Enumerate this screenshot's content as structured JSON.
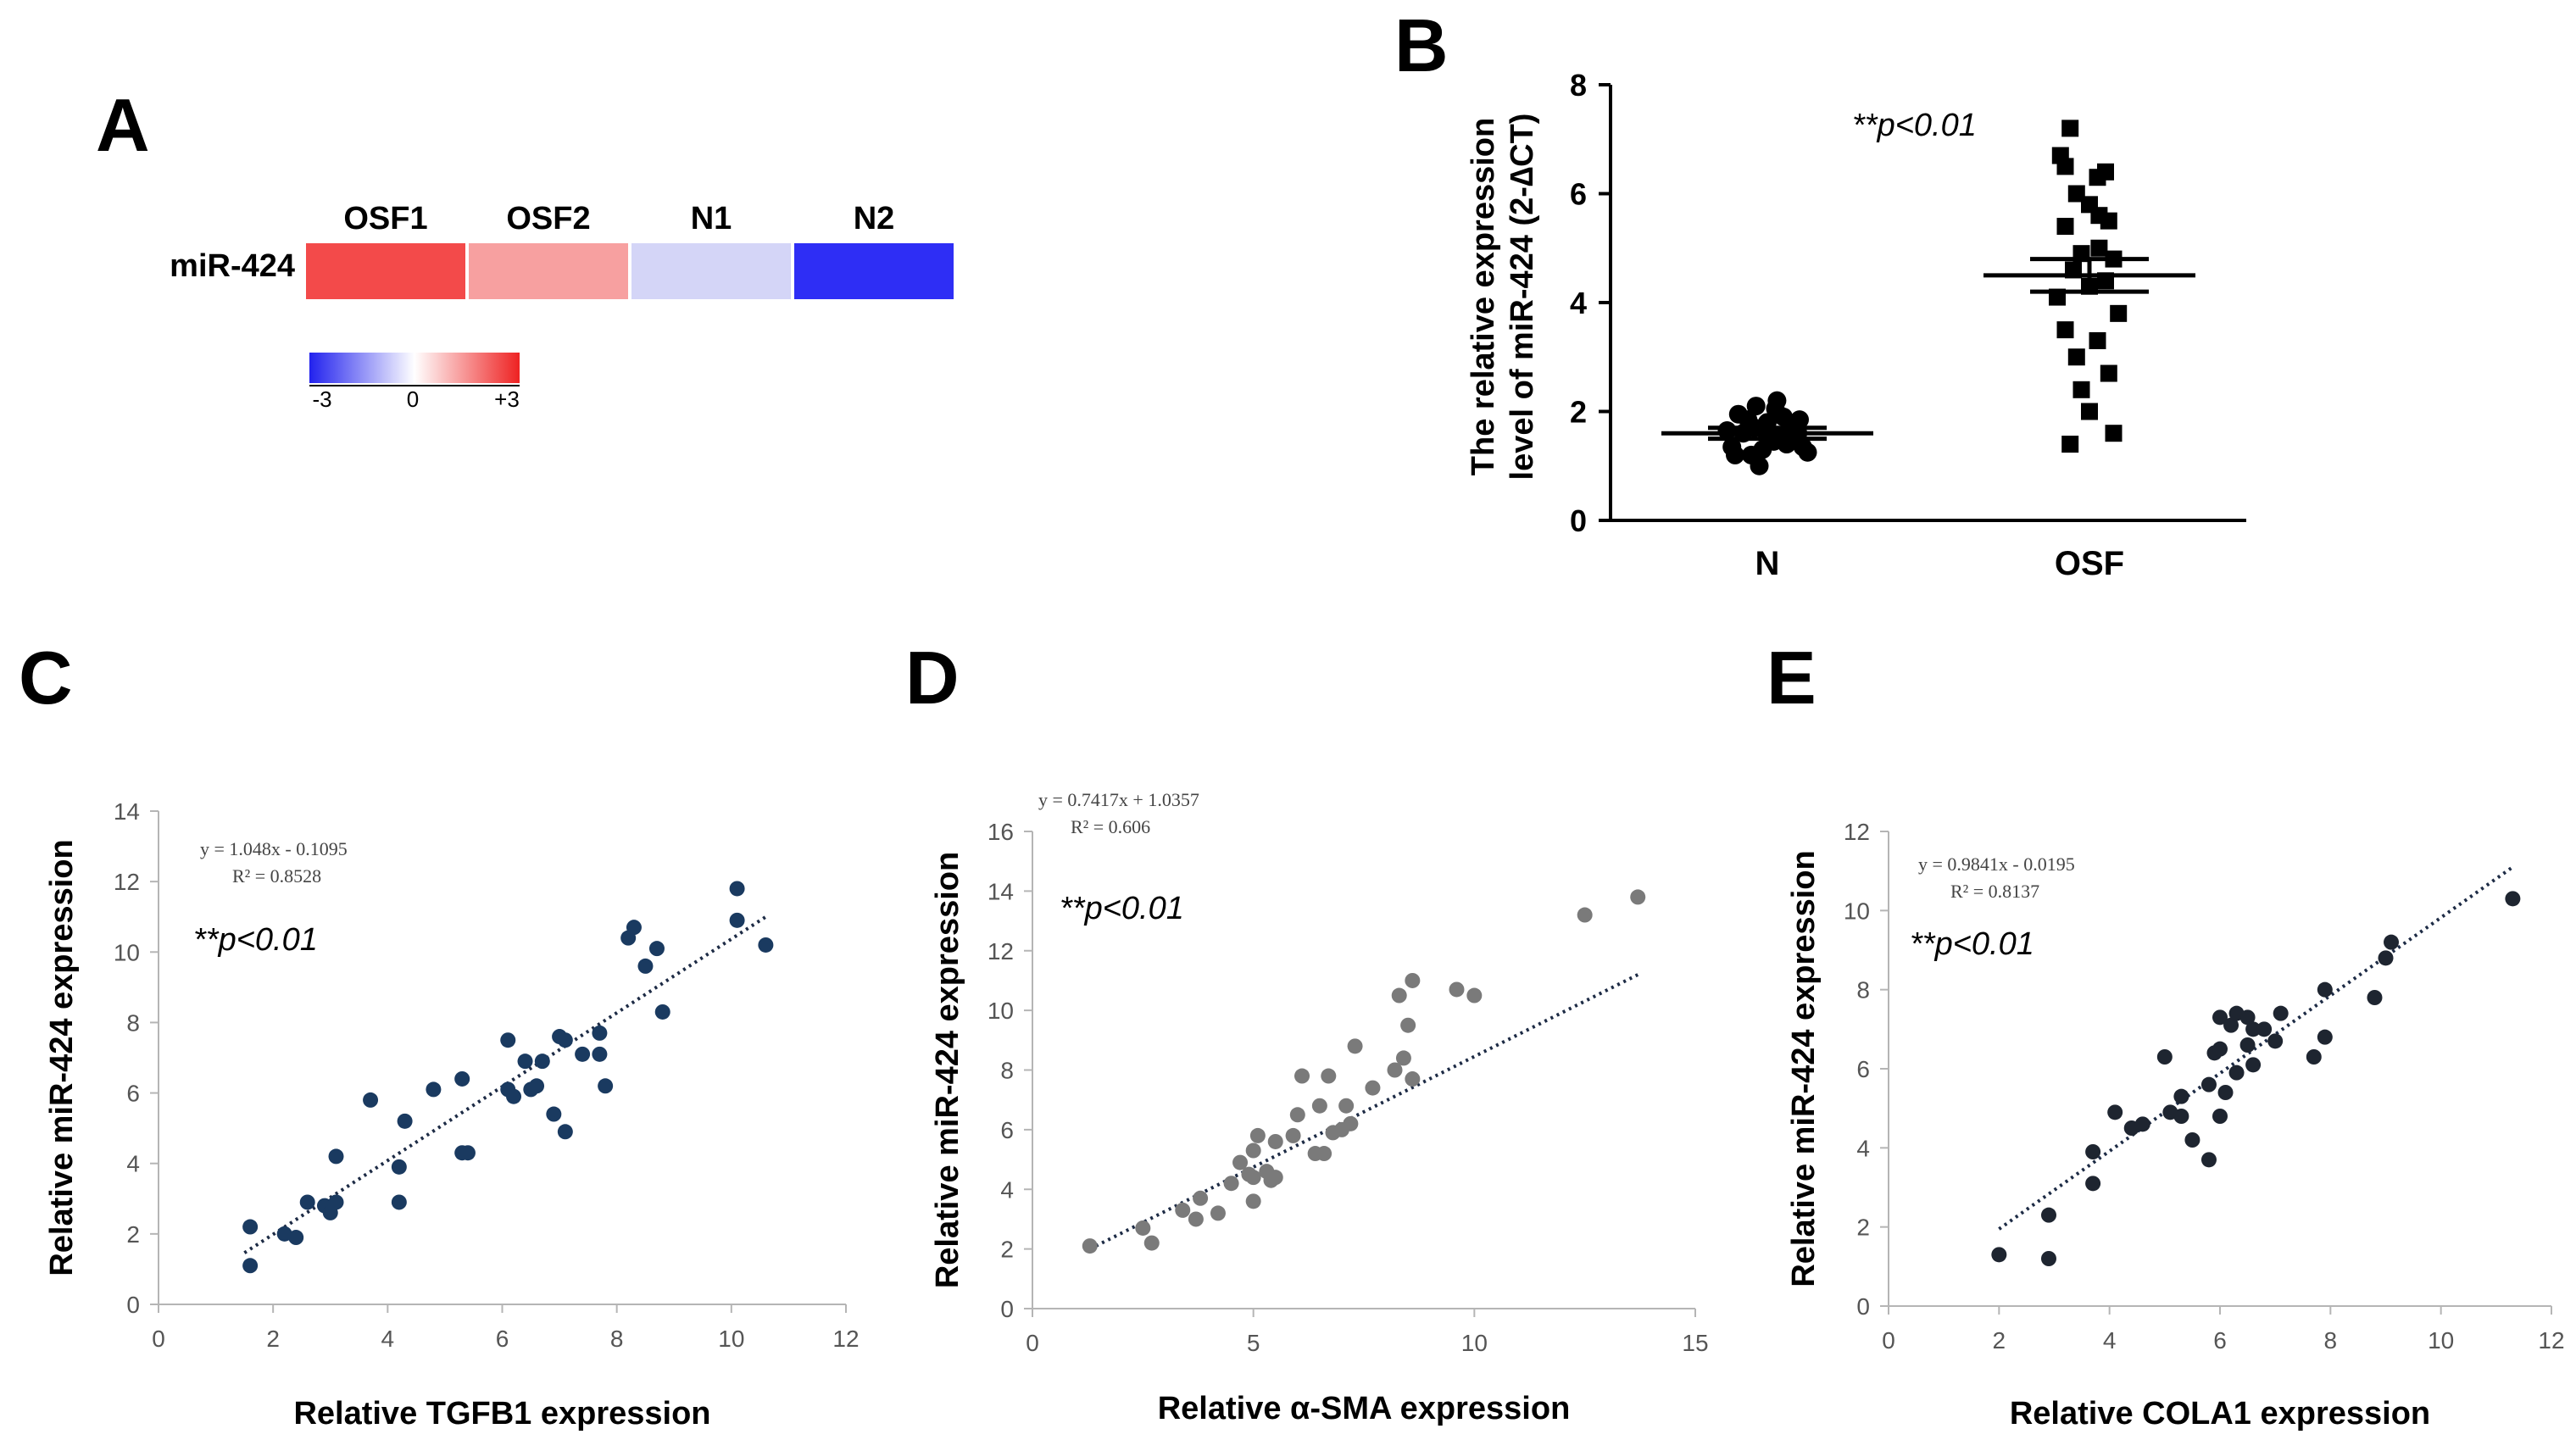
{
  "panels": {
    "a": "A",
    "b": "B",
    "c": "C",
    "d": "D",
    "e": "E"
  },
  "chart_data": [
    {
      "type": "heatmap",
      "panel": "A",
      "row_label": "miR-424",
      "columns": [
        "OSF1",
        "OSF2",
        "N1",
        "N2"
      ],
      "values": [
        2.2,
        1.2,
        -0.6,
        -3.0
      ],
      "colors": [
        "#f34a4a",
        "#f7a0a0",
        "#d4d5f7",
        "#2e2ef5"
      ],
      "scale": {
        "min_label": "-3",
        "mid_label": "0",
        "max_label": "+3",
        "min_color": "#2222ee",
        "mid_color": "#ffffff",
        "max_color": "#ee2222"
      }
    },
    {
      "type": "scatter",
      "panel": "B",
      "categories": [
        "N",
        "OSF"
      ],
      "ylabel": "The relative expression level of miR-424 (2-∆CT)",
      "ylim": [
        0,
        8
      ],
      "yticks": [
        "0",
        "2",
        "4",
        "6",
        "8"
      ],
      "annotation": "**p<0.01",
      "groups": [
        {
          "name": "N",
          "marker": "circle",
          "mean": 1.6,
          "sem_low": 1.5,
          "sem_high": 1.7,
          "points": [
            [
              -0.22,
              1.35
            ],
            [
              -0.15,
              1.6
            ],
            [
              -0.08,
              1.7
            ],
            [
              0.0,
              1.8
            ],
            [
              0.08,
              1.55
            ],
            [
              0.16,
              1.72
            ],
            [
              0.22,
              1.35
            ],
            [
              -0.18,
              1.95
            ],
            [
              -0.1,
              1.2
            ],
            [
              -0.03,
              1.3
            ],
            [
              0.04,
              1.45
            ],
            [
              0.1,
              1.9
            ],
            [
              0.19,
              1.6
            ],
            [
              -0.25,
              1.65
            ],
            [
              0.25,
              1.25
            ],
            [
              -0.05,
              1.0
            ],
            [
              0.05,
              2.05
            ],
            [
              -0.12,
              1.85
            ],
            [
              0.12,
              1.4
            ],
            [
              0.0,
              1.55
            ],
            [
              -0.2,
              1.2
            ],
            [
              0.2,
              1.85
            ],
            [
              0.06,
              2.2
            ],
            [
              -0.07,
              2.1
            ]
          ]
        },
        {
          "name": "OSF",
          "marker": "square",
          "mean": 4.5,
          "sem_low": 4.2,
          "sem_high": 4.8,
          "points": [
            [
              -0.12,
              7.2
            ],
            [
              -0.18,
              6.7
            ],
            [
              -0.15,
              6.5
            ],
            [
              0.1,
              6.4
            ],
            [
              0.05,
              6.3
            ],
            [
              -0.08,
              6.0
            ],
            [
              0.0,
              5.8
            ],
            [
              0.12,
              5.5
            ],
            [
              -0.15,
              5.4
            ],
            [
              0.06,
              5.0
            ],
            [
              -0.05,
              4.9
            ],
            [
              0.15,
              4.8
            ],
            [
              -0.1,
              4.6
            ],
            [
              0.1,
              4.4
            ],
            [
              0.0,
              4.3
            ],
            [
              -0.2,
              4.1
            ],
            [
              0.18,
              3.8
            ],
            [
              -0.15,
              3.5
            ],
            [
              0.05,
              3.3
            ],
            [
              -0.08,
              3.0
            ],
            [
              0.12,
              2.7
            ],
            [
              -0.05,
              2.4
            ],
            [
              0.0,
              2.0
            ],
            [
              0.15,
              1.6
            ],
            [
              -0.12,
              1.4
            ],
            [
              0.06,
              5.6
            ]
          ]
        }
      ]
    },
    {
      "type": "scatter",
      "panel": "C",
      "xlabel": "Relative TGFB1 expression",
      "ylabel": "Relative miR-424 expression",
      "xlim": [
        0,
        12
      ],
      "ylim": [
        0,
        14
      ],
      "xticks": [
        "0",
        "2",
        "4",
        "6",
        "8",
        "10",
        "12"
      ],
      "yticks": [
        "0",
        "2",
        "4",
        "6",
        "8",
        "10",
        "12",
        "14"
      ],
      "equation": "y = 1.048x - 0.1095",
      "r2": "R² = 0.8528",
      "annotation": "**p<0.01",
      "trendline": {
        "slope": 1.048,
        "intercept": -0.1095,
        "x_range": [
          1.5,
          10.6
        ]
      },
      "point_color": "#1a3a60",
      "points": [
        [
          1.6,
          1.1
        ],
        [
          1.6,
          2.2
        ],
        [
          2.2,
          2.0
        ],
        [
          2.4,
          1.9
        ],
        [
          2.6,
          2.9
        ],
        [
          2.9,
          2.8
        ],
        [
          3.0,
          2.6
        ],
        [
          3.1,
          2.9
        ],
        [
          3.1,
          4.2
        ],
        [
          3.7,
          5.8
        ],
        [
          4.2,
          3.9
        ],
        [
          4.2,
          2.9
        ],
        [
          4.3,
          5.2
        ],
        [
          4.8,
          6.1
        ],
        [
          5.3,
          6.4
        ],
        [
          5.3,
          4.3
        ],
        [
          5.4,
          4.3
        ],
        [
          6.1,
          7.5
        ],
        [
          6.1,
          6.1
        ],
        [
          6.2,
          5.9
        ],
        [
          6.4,
          6.9
        ],
        [
          6.5,
          6.1
        ],
        [
          6.6,
          6.2
        ],
        [
          6.7,
          6.9
        ],
        [
          6.9,
          5.4
        ],
        [
          7.0,
          7.6
        ],
        [
          7.1,
          7.5
        ],
        [
          7.1,
          4.9
        ],
        [
          7.4,
          7.1
        ],
        [
          7.7,
          7.7
        ],
        [
          7.7,
          7.1
        ],
        [
          7.8,
          6.2
        ],
        [
          8.2,
          10.4
        ],
        [
          8.3,
          10.7
        ],
        [
          8.5,
          9.6
        ],
        [
          8.7,
          10.1
        ],
        [
          8.8,
          8.3
        ],
        [
          10.1,
          11.8
        ],
        [
          10.1,
          10.9
        ],
        [
          10.6,
          10.2
        ]
      ]
    },
    {
      "type": "scatter",
      "panel": "D",
      "xlabel": "Relative α-SMA expression",
      "ylabel": "Relative miR-424 expression",
      "xlim": [
        0,
        15
      ],
      "ylim": [
        0,
        16
      ],
      "xticks": [
        "0",
        "5",
        "10",
        "15"
      ],
      "yticks": [
        "0",
        "2",
        "4",
        "6",
        "8",
        "10",
        "12",
        "14",
        "16"
      ],
      "equation": "y = 0.7417x + 1.0357",
      "r2": "R² = 0.606",
      "annotation": "**p<0.01",
      "trendline": {
        "slope": 0.7417,
        "intercept": 1.0357,
        "x_range": [
          1.3,
          13.7
        ]
      },
      "point_color": "#7a7a7a",
      "points": [
        [
          1.3,
          2.1
        ],
        [
          2.5,
          2.7
        ],
        [
          2.7,
          2.2
        ],
        [
          3.4,
          3.3
        ],
        [
          3.7,
          3.0
        ],
        [
          3.8,
          3.7
        ],
        [
          4.2,
          3.2
        ],
        [
          4.5,
          4.2
        ],
        [
          4.7,
          4.9
        ],
        [
          4.9,
          4.5
        ],
        [
          5.0,
          3.6
        ],
        [
          5.0,
          4.4
        ],
        [
          5.0,
          5.3
        ],
        [
          5.1,
          5.8
        ],
        [
          5.3,
          4.6
        ],
        [
          5.4,
          4.3
        ],
        [
          5.5,
          4.4
        ],
        [
          5.5,
          5.6
        ],
        [
          5.9,
          5.8
        ],
        [
          6.0,
          6.5
        ],
        [
          6.1,
          7.8
        ],
        [
          6.4,
          5.2
        ],
        [
          6.5,
          6.8
        ],
        [
          6.6,
          5.2
        ],
        [
          6.7,
          7.8
        ],
        [
          6.8,
          5.9
        ],
        [
          7.0,
          6.0
        ],
        [
          7.1,
          6.8
        ],
        [
          7.2,
          6.2
        ],
        [
          7.3,
          8.8
        ],
        [
          7.7,
          7.4
        ],
        [
          8.2,
          8.0
        ],
        [
          8.3,
          10.5
        ],
        [
          8.4,
          8.4
        ],
        [
          8.5,
          9.5
        ],
        [
          8.6,
          11.0
        ],
        [
          8.6,
          7.7
        ],
        [
          9.6,
          10.7
        ],
        [
          10.0,
          10.5
        ],
        [
          12.5,
          13.2
        ],
        [
          13.7,
          13.8
        ]
      ]
    },
    {
      "type": "scatter",
      "panel": "E",
      "xlabel": "Relative COLA1 expression",
      "ylabel": "Relative miR-424 expression",
      "xlim": [
        0,
        12
      ],
      "ylim": [
        0,
        12
      ],
      "xticks": [
        "0",
        "2",
        "4",
        "6",
        "8",
        "10",
        "12"
      ],
      "yticks": [
        "0",
        "2",
        "4",
        "6",
        "8",
        "10",
        "12"
      ],
      "equation": "y = 0.9841x - 0.0195",
      "r2": "R² = 0.8137",
      "annotation": "**p<0.01",
      "trendline": {
        "slope": 0.9841,
        "intercept": -0.0195,
        "x_range": [
          2.0,
          11.3
        ]
      },
      "point_color": "#1e2530",
      "points": [
        [
          2.0,
          1.3
        ],
        [
          2.9,
          2.3
        ],
        [
          2.9,
          1.2
        ],
        [
          3.7,
          3.9
        ],
        [
          3.7,
          3.1
        ],
        [
          4.1,
          4.9
        ],
        [
          4.4,
          4.5
        ],
        [
          4.6,
          4.6
        ],
        [
          5.0,
          6.3
        ],
        [
          5.1,
          4.9
        ],
        [
          5.3,
          4.8
        ],
        [
          5.3,
          5.3
        ],
        [
          5.5,
          4.2
        ],
        [
          5.8,
          3.7
        ],
        [
          5.8,
          5.6
        ],
        [
          5.9,
          6.4
        ],
        [
          6.0,
          6.5
        ],
        [
          6.0,
          7.3
        ],
        [
          6.0,
          4.8
        ],
        [
          6.1,
          5.4
        ],
        [
          6.2,
          7.1
        ],
        [
          6.3,
          5.9
        ],
        [
          6.3,
          7.4
        ],
        [
          6.5,
          6.6
        ],
        [
          6.5,
          7.3
        ],
        [
          6.6,
          7.0
        ],
        [
          6.6,
          6.1
        ],
        [
          6.8,
          7.0
        ],
        [
          7.0,
          6.7
        ],
        [
          7.1,
          7.4
        ],
        [
          7.7,
          6.3
        ],
        [
          7.9,
          8.0
        ],
        [
          7.9,
          6.8
        ],
        [
          8.8,
          7.8
        ],
        [
          9.0,
          8.8
        ],
        [
          9.1,
          9.2
        ],
        [
          11.3,
          10.3
        ]
      ]
    }
  ]
}
